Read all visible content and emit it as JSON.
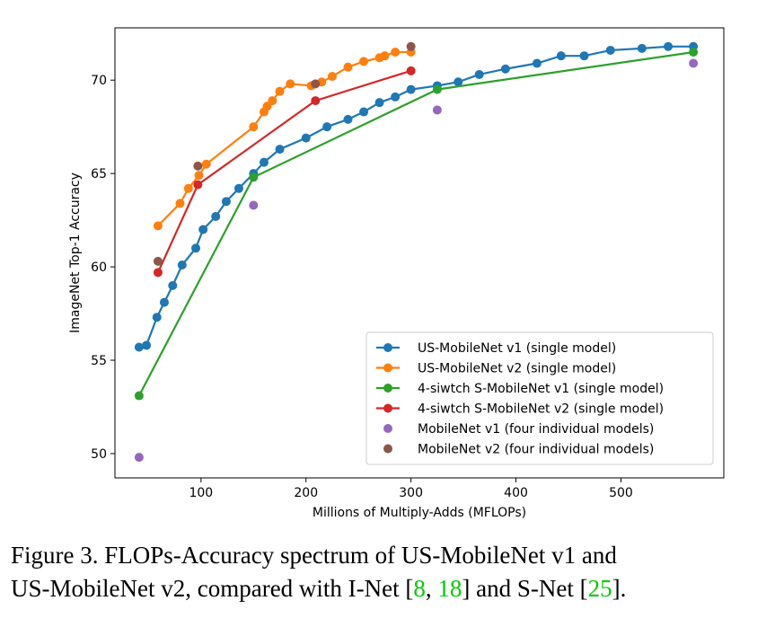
{
  "chart_data": {
    "type": "line",
    "xlabel": "Millions of Multiply-Adds (MFLOPs)",
    "ylabel": "ImageNet Top-1 Accuracy",
    "xlim": [
      18,
      598
    ],
    "ylim": [
      48.7,
      72.8
    ],
    "xticks": [
      100,
      200,
      300,
      400,
      500
    ],
    "yticks": [
      50,
      55,
      60,
      65,
      70
    ],
    "legend_position": "lower-right",
    "series": [
      {
        "name": "US-MobileNet v1 (single model)",
        "color": "#1f77b4",
        "style": "line",
        "x": [
          41,
          48,
          58,
          65,
          73,
          82,
          95,
          102,
          114,
          124,
          136,
          150,
          160,
          175,
          200,
          220,
          240,
          255,
          270,
          285,
          300,
          325,
          345,
          365,
          390,
          420,
          443,
          465,
          490,
          520,
          545,
          569
        ],
        "y": [
          55.7,
          55.8,
          57.3,
          58.1,
          59.0,
          60.1,
          61.0,
          62.0,
          62.7,
          63.5,
          64.2,
          65.0,
          65.6,
          66.3,
          66.9,
          67.5,
          67.9,
          68.3,
          68.8,
          69.1,
          69.5,
          69.7,
          69.9,
          70.3,
          70.6,
          70.9,
          71.3,
          71.3,
          71.6,
          71.7,
          71.8,
          71.8
        ]
      },
      {
        "name": "US-MobileNet v2 (single model)",
        "color": "#ff7f0e",
        "style": "line",
        "x": [
          59,
          80,
          88,
          98,
          105,
          150,
          160,
          163,
          168,
          175,
          185,
          205,
          215,
          225,
          240,
          255,
          270,
          275,
          285,
          300
        ],
        "y": [
          62.2,
          63.4,
          64.2,
          64.9,
          65.5,
          67.5,
          68.3,
          68.6,
          68.9,
          69.4,
          69.8,
          69.7,
          69.9,
          70.2,
          70.7,
          71.0,
          71.2,
          71.3,
          71.5,
          71.5
        ]
      },
      {
        "name": "4-siwtch S-MobileNet v1 (single model)",
        "color": "#2ca02c",
        "style": "line",
        "x": [
          41,
          150,
          325,
          569
        ],
        "y": [
          53.1,
          64.8,
          69.5,
          71.5
        ]
      },
      {
        "name": "4-siwtch S-MobileNet v2 (single model)",
        "color": "#d62728",
        "style": "line",
        "x": [
          59,
          97,
          209,
          300
        ],
        "y": [
          59.7,
          64.4,
          68.9,
          70.5
        ]
      },
      {
        "name": "MobileNet v1 (four individual models)",
        "color": "#9467bd",
        "style": "scatter",
        "x": [
          41,
          150,
          325,
          569
        ],
        "y": [
          49.8,
          63.3,
          68.4,
          70.9
        ]
      },
      {
        "name": "MobileNet v2 (four individual models)",
        "color": "#8c564b",
        "style": "scatter",
        "x": [
          59,
          97,
          209,
          300
        ],
        "y": [
          60.3,
          65.4,
          69.8,
          71.8
        ]
      }
    ]
  },
  "caption": {
    "line1_prefix": "Figure 3. FLOPs-Accuracy spectrum of US-MobileNet v1 and",
    "line2_prefix": "US-MobileNet v2, compared with I-Net [",
    "cite_a": "8",
    "sep": ", ",
    "cite_b": "18",
    "mid": "] and S-Net [",
    "cite_c": "25",
    "suffix": "]."
  }
}
